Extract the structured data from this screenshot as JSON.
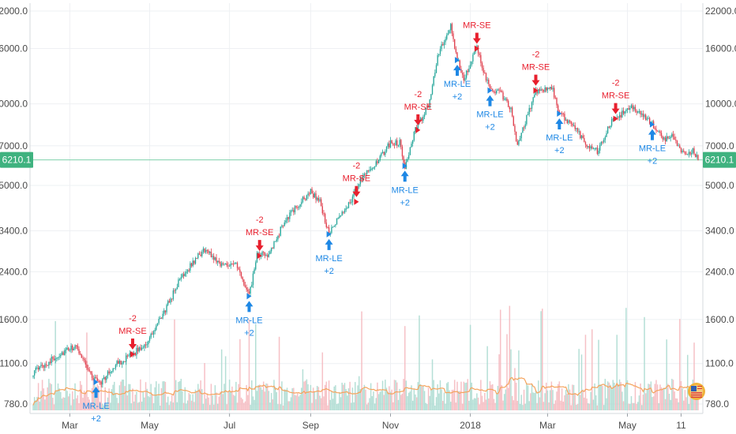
{
  "chart_data": {
    "type": "candlestick",
    "scale": "log",
    "y_ticks": [
      "22000.0",
      "16000.0",
      "10000.0",
      "7000.0",
      "5000.0",
      "3400.0",
      "2400.0",
      "1600.0",
      "1100.0",
      "780.0"
    ],
    "y_tick_values": [
      22000,
      16000,
      10000,
      7000,
      5000,
      3400,
      2400,
      1600,
      1100,
      780
    ],
    "x_ticks": [
      "Mar",
      "May",
      "Jul",
      "Sep",
      "Nov",
      "2018",
      "Mar",
      "May",
      "11"
    ],
    "x_tick_dates": [
      "2017-03-01",
      "2017-05-01",
      "2017-07-01",
      "2017-09-01",
      "2017-11-01",
      "2018-01-01",
      "2018-03-01",
      "2018-05-01",
      "2018-06-11"
    ],
    "date_range": [
      "2017-02-01",
      "2018-06-24"
    ],
    "y_range": [
      740,
      24000
    ],
    "last_price": "6210.1",
    "last_price_value": 6210.1,
    "price_path": [
      [
        "2017-02-01",
        1020
      ],
      [
        "2017-02-20",
        1180
      ],
      [
        "2017-03-05",
        1270
      ],
      [
        "2017-03-10",
        1180
      ],
      [
        "2017-03-18",
        980
      ],
      [
        "2017-03-25",
        940
      ],
      [
        "2017-04-05",
        1090
      ],
      [
        "2017-04-18",
        1190
      ],
      [
        "2017-04-30",
        1330
      ],
      [
        "2017-05-12",
        1700
      ],
      [
        "2017-05-25",
        2300
      ],
      [
        "2017-06-06",
        2700
      ],
      [
        "2017-06-12",
        2900
      ],
      [
        "2017-06-25",
        2550
      ],
      [
        "2017-07-05",
        2600
      ],
      [
        "2017-07-16",
        1950
      ],
      [
        "2017-07-22",
        2750
      ],
      [
        "2017-08-01",
        2800
      ],
      [
        "2017-08-12",
        3700
      ],
      [
        "2017-08-22",
        4200
      ],
      [
        "2017-09-01",
        4750
      ],
      [
        "2017-09-08",
        4350
      ],
      [
        "2017-09-15",
        3300
      ],
      [
        "2017-09-22",
        3750
      ],
      [
        "2017-10-01",
        4350
      ],
      [
        "2017-10-12",
        5600
      ],
      [
        "2017-10-21",
        6000
      ],
      [
        "2017-11-01",
        7200
      ],
      [
        "2017-11-08",
        7200
      ],
      [
        "2017-11-12",
        5900
      ],
      [
        "2017-11-20",
        8000
      ],
      [
        "2017-11-30",
        9800
      ],
      [
        "2017-12-07",
        15000
      ],
      [
        "2017-12-17",
        19200
      ],
      [
        "2017-12-22",
        14500
      ],
      [
        "2017-12-27",
        12500
      ],
      [
        "2018-01-06",
        16000
      ],
      [
        "2018-01-16",
        11200
      ],
      [
        "2018-01-24",
        11000
      ],
      [
        "2018-02-01",
        9500
      ],
      [
        "2018-02-06",
        6900
      ],
      [
        "2018-02-12",
        8600
      ],
      [
        "2018-02-20",
        11200
      ],
      [
        "2018-03-05",
        11300
      ],
      [
        "2018-03-10",
        9200
      ],
      [
        "2018-03-20",
        8400
      ],
      [
        "2018-04-01",
        7000
      ],
      [
        "2018-04-08",
        6700
      ],
      [
        "2018-04-20",
        8800
      ],
      [
        "2018-05-05",
        9700
      ],
      [
        "2018-05-10",
        9300
      ],
      [
        "2018-05-20",
        8400
      ],
      [
        "2018-05-28",
        7400
      ],
      [
        "2018-06-05",
        7600
      ],
      [
        "2018-06-12",
        6600
      ],
      [
        "2018-06-20",
        6700
      ],
      [
        "2018-06-24",
        6210
      ]
    ],
    "signals": [
      {
        "type": "long",
        "date": "2017-03-21",
        "price": 940,
        "line1": "MR-LE",
        "line2": "+2"
      },
      {
        "type": "short",
        "date": "2017-04-18",
        "price": 1190,
        "line1": "MR-SE",
        "line2": "-2"
      },
      {
        "type": "long",
        "date": "2017-07-16",
        "price": 1950,
        "line1": "MR-LE",
        "line2": "+2"
      },
      {
        "type": "short",
        "date": "2017-07-24",
        "price": 2750,
        "line1": "MR-SE",
        "line2": "-2"
      },
      {
        "type": "long",
        "date": "2017-09-15",
        "price": 3300,
        "line1": "MR-LE",
        "line2": "+2"
      },
      {
        "type": "short",
        "date": "2017-10-06",
        "price": 4350,
        "line1": "MR-SE",
        "line2": "-2"
      },
      {
        "type": "long",
        "date": "2017-11-12",
        "price": 5900,
        "line1": "MR-LE",
        "line2": "+2"
      },
      {
        "type": "short",
        "date": "2017-11-22",
        "price": 8000,
        "line1": "MR-SE",
        "line2": "-2"
      },
      {
        "type": "long",
        "date": "2017-12-22",
        "price": 14500,
        "line1": "MR-LE",
        "line2": "+2"
      },
      {
        "type": "short",
        "date": "2018-01-06",
        "price": 16000,
        "line1": "MR-SE",
        "line2": ""
      },
      {
        "type": "long",
        "date": "2018-01-16",
        "price": 11200,
        "line1": "MR-LE",
        "line2": "+2"
      },
      {
        "type": "short",
        "date": "2018-02-20",
        "price": 11200,
        "line1": "MR-SE",
        "line2": "-2"
      },
      {
        "type": "long",
        "date": "2018-03-10",
        "price": 9200,
        "line1": "MR-LE",
        "line2": "+2"
      },
      {
        "type": "short",
        "date": "2018-04-22",
        "price": 8800,
        "line1": "MR-SE",
        "line2": "-2"
      },
      {
        "type": "long",
        "date": "2018-05-20",
        "price": 8400,
        "line1": "MR-LE",
        "line2": "+2"
      }
    ],
    "legend": "none",
    "grid": true,
    "colors": {
      "up": "#26a69a",
      "down": "#e0414f",
      "volume_up": "#a8d9cf",
      "volume_down": "#f4b6bc",
      "volume_ma": "#f5a35c",
      "long_signal": "#1e88e5",
      "short_signal": "#e8202e",
      "price_label_bg": "#3fb27f",
      "price_line": "#7fd0ab",
      "grid": "#eef0f3",
      "axis_text": "#4a4a4a"
    }
  }
}
